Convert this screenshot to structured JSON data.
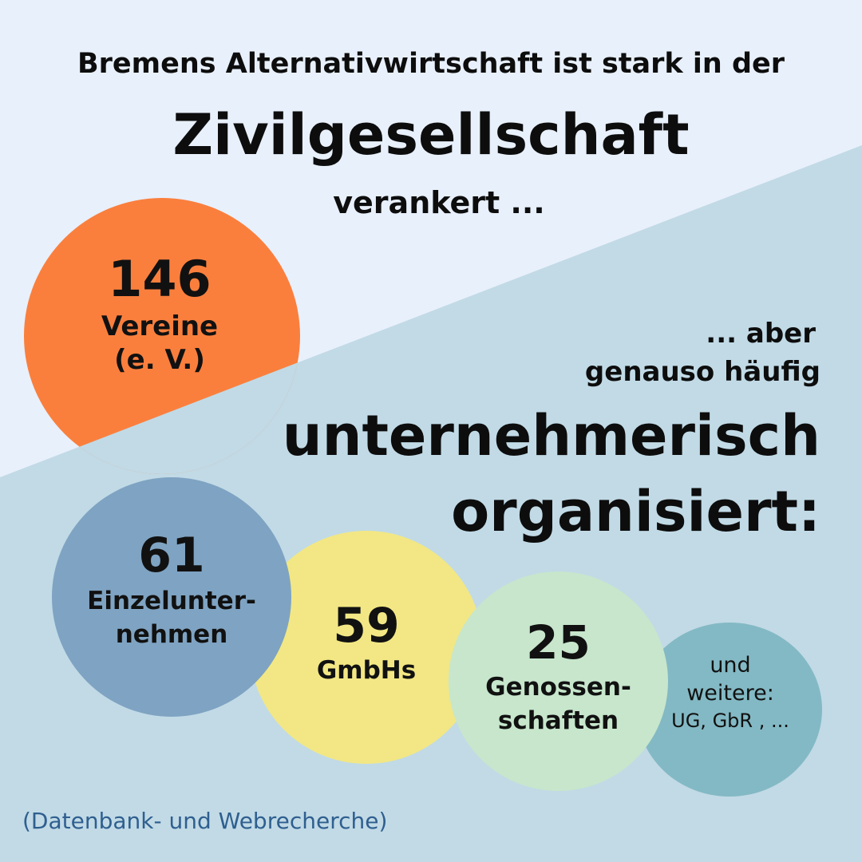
{
  "header": {
    "line1": "Bremens Alternativwirtschaft ist stark in der",
    "line2": "Zivilgesellschaft",
    "line3": "verankert ..."
  },
  "subhead": {
    "line1": "... aber",
    "line2": "genauso häufig",
    "line3": "unternehmerisch",
    "line4": "organisiert:"
  },
  "bubbles": [
    {
      "number": "146",
      "label_1": "Vereine",
      "label_2": "(e. V.)",
      "color": "#fa7f3d"
    },
    {
      "number": "61",
      "label_1": "Einzelunter-",
      "label_2": "nehmen",
      "color": "#7fa3c2"
    },
    {
      "number": "59",
      "label_1": "GmbHs",
      "label_2": "",
      "color": "#f2e784"
    },
    {
      "number": "25",
      "label_1": "Genossen-",
      "label_2": "schaften",
      "color": "#c7e6cc"
    },
    {
      "number": "",
      "label_1": "und",
      "label_2": "weitere:",
      "label_3": "UG, GbR , ...",
      "color": "#83b9c4"
    }
  ],
  "footer": {
    "source": "(Datenbank- und Webrecherche)"
  },
  "colors": {
    "background_top": "#e8f0fb",
    "background_bottom": "#c1dae6",
    "source_text": "#2f5f8f"
  }
}
